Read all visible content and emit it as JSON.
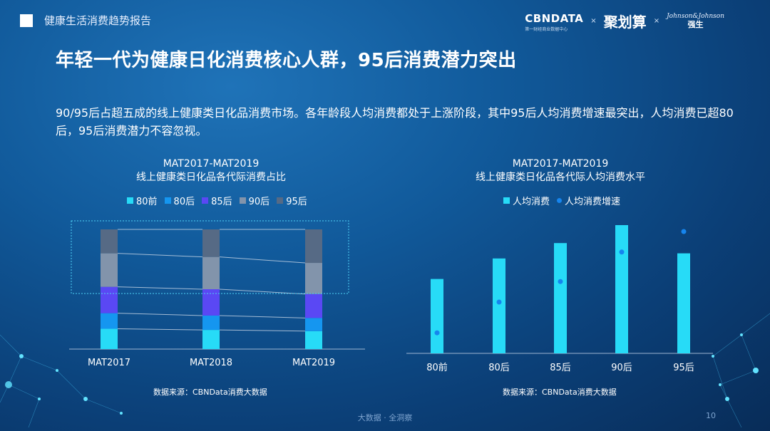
{
  "header": {
    "report_title": "健康生活消费趋势报告",
    "brands": {
      "cbn": "CBNDATA",
      "cbn_sub": "第一财经商业数据中心",
      "sep1": "×",
      "jhs": "聚划算",
      "sep2": "×",
      "jj_script": "Johnson&Johnson",
      "jj_cn": "强生"
    }
  },
  "headline": "年轻一代为健康日化消费核心人群，95后消费潜力突出",
  "description": "90/95后占超五成的线上健康类日化品消费市场。各年龄段人均消费都处于上涨阶段，其中95后人均消费增速最突出，人均消费已超80后，95后消费潜力不容忽视。",
  "chart_left": {
    "title_line1": "MAT2017-MAT2019",
    "title_line2": "线上健康类日化品各代际消费占比",
    "source": "数据来源：CBNData消费大数据"
  },
  "chart_right": {
    "title_line1": "MAT2017-MAT2019",
    "title_line2": "线上健康类日化品各代际人均消费水平",
    "source": "数据来源：CBNData消费大数据"
  },
  "chart_data": [
    {
      "type": "bar",
      "stacked": true,
      "normalized": true,
      "categories": [
        "MAT2017",
        "MAT2018",
        "MAT2019"
      ],
      "series": [
        {
          "name": "80前",
          "color": "#27dbf7",
          "values": [
            17,
            16,
            15
          ]
        },
        {
          "name": "80后",
          "color": "#1596f0",
          "values": [
            13,
            12,
            11
          ]
        },
        {
          "name": "85后",
          "color": "#5a48f4",
          "values": [
            22,
            22,
            20
          ]
        },
        {
          "name": "90后",
          "color": "#8294ab",
          "values": [
            28,
            27,
            26
          ]
        },
        {
          "name": "95后",
          "color": "#566a85",
          "values": [
            20,
            23,
            28
          ]
        }
      ],
      "highlight": "90后 + 95后 (dotted box)",
      "connector_lines": true
    },
    {
      "type": "bar",
      "categories": [
        "80前",
        "80后",
        "85后",
        "90后",
        "95后"
      ],
      "series": [
        {
          "name": "人均消费",
          "kind": "bar",
          "color": "#27dbf7",
          "values": [
            0.58,
            0.74,
            0.86,
            1.0,
            0.78
          ]
        },
        {
          "name": "人均消费增速",
          "kind": "dot",
          "color": "#1685ee",
          "values": [
            0.16,
            0.4,
            0.56,
            0.79,
            0.95
          ]
        }
      ],
      "y_axis": "hidden, relative scale"
    }
  ],
  "footer": {
    "tagline": "大数据 · 全洞察",
    "page": "10"
  }
}
